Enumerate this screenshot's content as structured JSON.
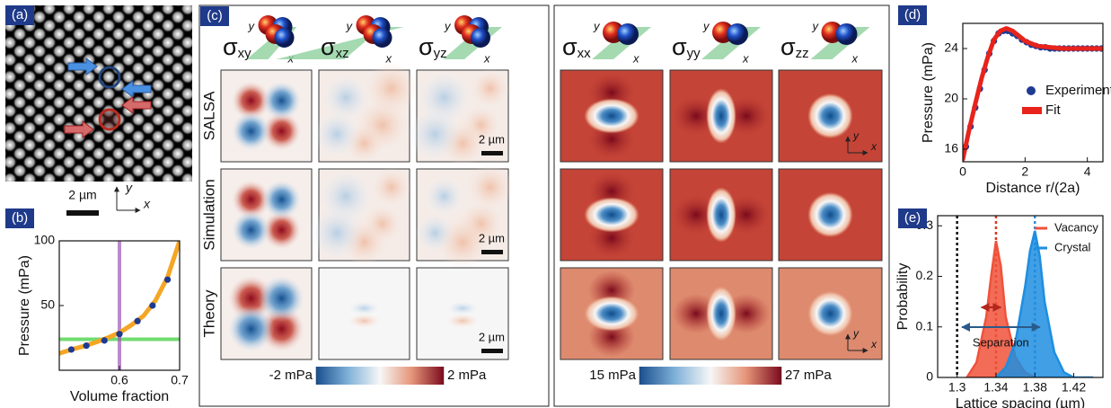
{
  "panel_labels": [
    "(a)",
    "(b)",
    "(c)",
    "(d)",
    "(e)"
  ],
  "panel_a": {
    "scale_bar": "2 µm",
    "axis_labels": [
      "x",
      "y"
    ]
  },
  "panel_c": {
    "columns": [
      {
        "symbol": "σ",
        "sub": "xy"
      },
      {
        "symbol": "σ",
        "sub": "xz"
      },
      {
        "symbol": "σ",
        "sub": "yz"
      },
      {
        "symbol": "σ",
        "sub": "xx"
      },
      {
        "symbol": "σ",
        "sub": "yy"
      },
      {
        "symbol": "σ",
        "sub": "zz"
      }
    ],
    "rows": [
      "SALSA",
      "Simulation",
      "Theory"
    ],
    "scale_bar": "2 µm",
    "axis_labels": [
      "x",
      "y"
    ],
    "colorbars": [
      {
        "lim": [
          -2,
          2
        ],
        "ticks": [
          {
            "value": -2,
            "label": "-2 mPa"
          },
          {
            "value": 2,
            "label": "2 mPa"
          }
        ]
      },
      {
        "lim": [
          15,
          27
        ],
        "ticks": [
          {
            "value": 15,
            "label": "15 mPa"
          },
          {
            "value": 27,
            "label": "27 mPa"
          }
        ]
      }
    ]
  },
  "chart_data": [
    {
      "type": "xy",
      "x_label": "Volume fraction",
      "y_label": "Pressure (mPa)",
      "xlim": [
        0.5,
        0.7
      ],
      "xticks": [
        0.6,
        0.7
      ],
      "ylim": [
        0,
        100
      ],
      "yticks": [
        50,
        100
      ],
      "reference_lines": [
        {
          "axis": "y",
          "value": 24,
          "color": "#33cc33"
        },
        {
          "axis": "x",
          "value": 0.6,
          "color": "#9b59b6"
        }
      ],
      "series": [
        {
          "kind": "line",
          "color": "#f5a623",
          "x": [
            0.5,
            0.52,
            0.54,
            0.56,
            0.58,
            0.6,
            0.62,
            0.64,
            0.66,
            0.68,
            0.7
          ],
          "values": [
            13,
            16,
            18.5,
            21.5,
            25,
            29,
            35,
            42,
            54,
            72,
            100
          ]
        },
        {
          "kind": "points",
          "color": "#1f3a93",
          "x": [
            0.52,
            0.545,
            0.575,
            0.6,
            0.63,
            0.655,
            0.68
          ],
          "values": [
            16,
            19,
            23,
            28,
            38,
            50,
            70
          ]
        }
      ]
    },
    {
      "type": "xy",
      "x_label": "Distance r/(2a)",
      "y_label": "Pressure (mPa)",
      "xlim": [
        0,
        4.5
      ],
      "xticks": [
        0,
        2,
        4
      ],
      "ylim": [
        15,
        26
      ],
      "yticks": [
        16,
        20,
        24
      ],
      "legend": "center right",
      "series": [
        {
          "name": "Experiment",
          "kind": "points",
          "color": "#1f3a93",
          "x": [
            0.1,
            0.25,
            0.4,
            0.55,
            0.7,
            0.85,
            1.0,
            1.15,
            1.3,
            1.45,
            1.6,
            1.75,
            1.9,
            2.05,
            2.2,
            2.35,
            2.5,
            2.65,
            2.8,
            2.95,
            3.1,
            3.25,
            3.4,
            3.55,
            3.7,
            3.85,
            4.0,
            4.15,
            4.3,
            4.45
          ],
          "values": [
            16.2,
            17.8,
            19.3,
            20.8,
            22.3,
            23.6,
            24.6,
            25.2,
            25.4,
            25.4,
            25.2,
            25.0,
            24.7,
            24.5,
            24.3,
            24.2,
            24.1,
            24.1,
            24.0,
            24.0,
            24.0,
            24.0,
            24.0,
            24.0,
            24.0,
            24.0,
            24.0,
            24.0,
            24.0,
            24.0
          ]
        },
        {
          "name": "Fit",
          "kind": "line",
          "color": "#e8231b",
          "x": [
            0,
            0.2,
            0.4,
            0.6,
            0.8,
            1.0,
            1.2,
            1.4,
            1.6,
            1.8,
            2.0,
            2.4,
            2.8,
            3.2,
            3.6,
            4.0,
            4.5
          ],
          "values": [
            15.2,
            17.5,
            19.6,
            21.6,
            23.3,
            24.7,
            25.4,
            25.6,
            25.4,
            25.0,
            24.6,
            24.2,
            24.1,
            24.0,
            24.0,
            24.0,
            24.0
          ]
        }
      ]
    },
    {
      "type": "xy",
      "x_label": "Lattice spacing (µm)",
      "y_label": "Probability",
      "annotation": "Separation",
      "xlim": [
        1.28,
        1.45
      ],
      "xticks": [
        1.3,
        1.34,
        1.38,
        1.42
      ],
      "ylim": [
        0,
        0.32
      ],
      "yticks": [
        0,
        0.1,
        0.2,
        0.3
      ],
      "legend": "upper right",
      "reference_lines": [
        {
          "axis": "x",
          "value": 1.3,
          "color": "#111111",
          "dash": true
        },
        {
          "axis": "x",
          "value": 1.34,
          "color": "#d9381e",
          "dash": true
        },
        {
          "axis": "x",
          "value": 1.38,
          "color": "#2f8fd8",
          "dash": true
        }
      ],
      "series": [
        {
          "name": "Vacancy",
          "kind": "area",
          "color": "#f0523a",
          "x": [
            1.31,
            1.32,
            1.33,
            1.335,
            1.34,
            1.345,
            1.35,
            1.36,
            1.37,
            1.38,
            1.4
          ],
          "values": [
            0,
            0.03,
            0.12,
            0.2,
            0.27,
            0.22,
            0.12,
            0.04,
            0.01,
            0,
            0
          ]
        },
        {
          "name": "Crystal",
          "kind": "area",
          "color": "#1e8ee0",
          "x": [
            1.34,
            1.35,
            1.36,
            1.37,
            1.375,
            1.38,
            1.385,
            1.39,
            1.4,
            1.41,
            1.42,
            1.44
          ],
          "values": [
            0,
            0.02,
            0.07,
            0.18,
            0.25,
            0.29,
            0.24,
            0.15,
            0.05,
            0.01,
            0,
            0
          ]
        }
      ]
    }
  ]
}
